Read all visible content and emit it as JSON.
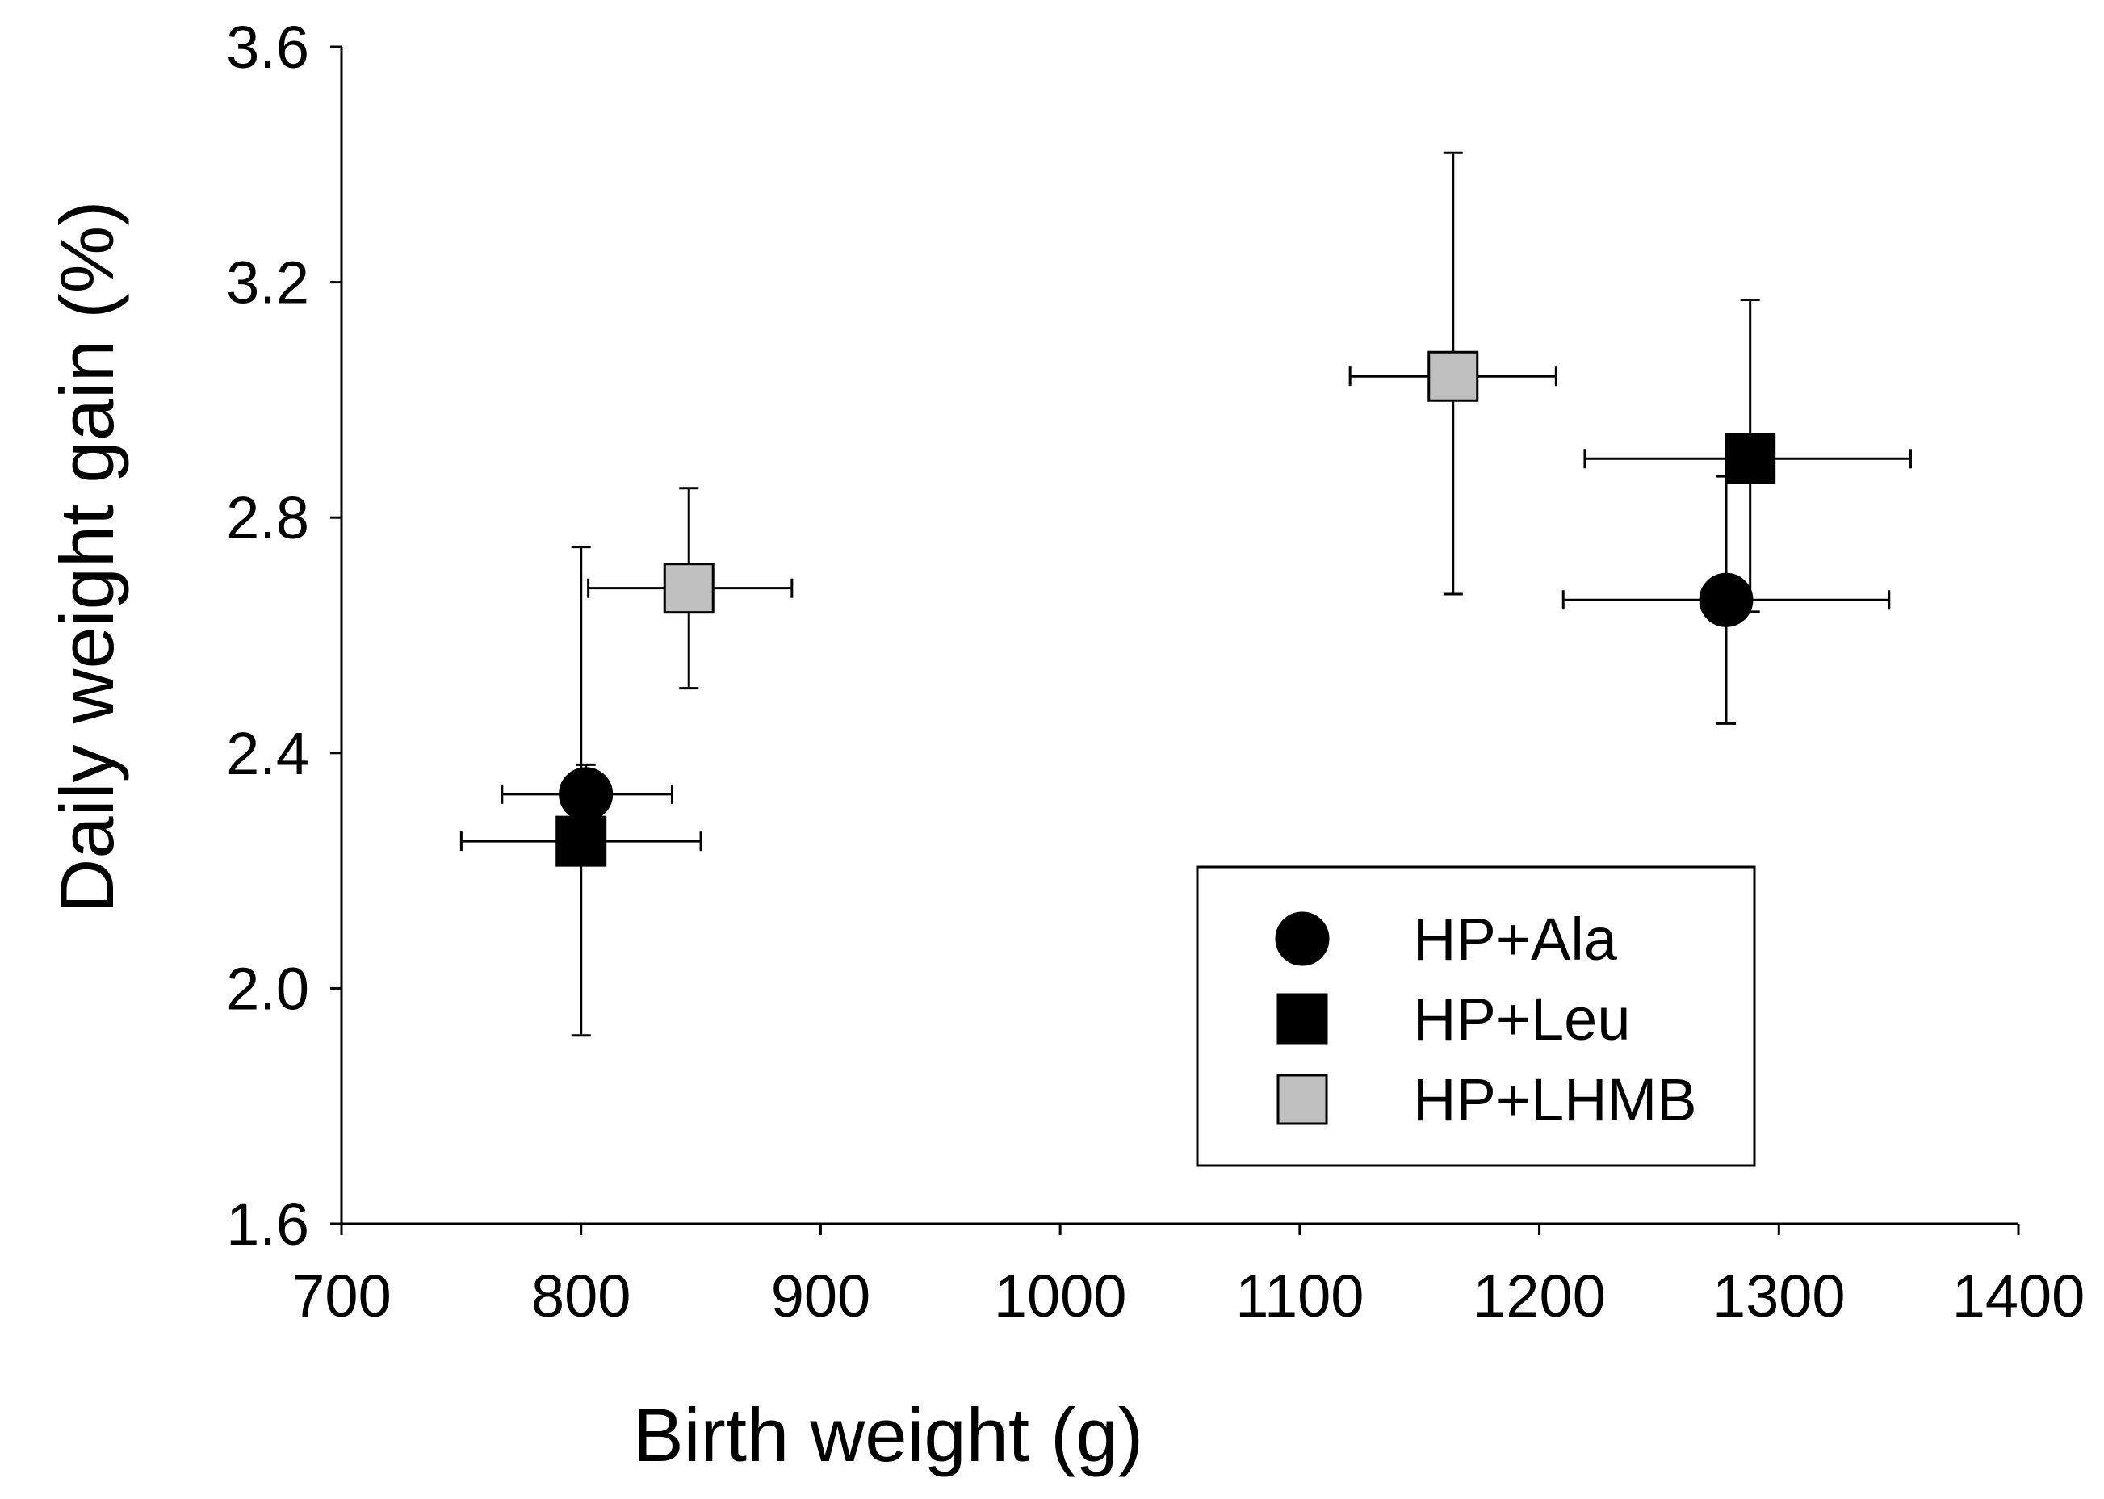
{
  "chart_data": {
    "type": "scatter",
    "title": "",
    "xlabel": "Birth weight (g)",
    "ylabel": "Daily weight gain (%)",
    "xlim": [
      700,
      1400
    ],
    "ylim": [
      1.6,
      3.6
    ],
    "x_ticks": [
      700,
      800,
      900,
      1000,
      1100,
      1200,
      1300,
      1400
    ],
    "y_ticks": [
      1.6,
      2.0,
      2.4,
      2.8,
      3.2,
      3.6
    ],
    "x_tick_labels": [
      "700",
      "800",
      "900",
      "1000",
      "1100",
      "1200",
      "1300",
      "1400"
    ],
    "y_tick_labels": [
      "1.6",
      "2.0",
      "2.4",
      "2.8",
      "3.2",
      "3.6"
    ],
    "grid": false,
    "legend_position": "bottom-right",
    "series": [
      {
        "name": "HP+Ala",
        "marker": "circle",
        "color": "#000000",
        "points": [
          {
            "x": 802,
            "y": 2.33,
            "x_err": [
              767,
              838
            ],
            "y_err": [
              2.28,
              2.38
            ]
          },
          {
            "x": 1278,
            "y": 2.66,
            "x_err": [
              1210,
              1346
            ],
            "y_err": [
              2.45,
              2.87
            ]
          }
        ]
      },
      {
        "name": "HP+Leu",
        "marker": "square",
        "color": "#000000",
        "points": [
          {
            "x": 800,
            "y": 2.25,
            "x_err": [
              750,
              850
            ],
            "y_err": [
              1.92,
              2.75
            ]
          },
          {
            "x": 1288,
            "y": 2.9,
            "x_err": [
              1219,
              1355
            ],
            "y_err": [
              2.64,
              3.17
            ]
          }
        ]
      },
      {
        "name": "HP+LHMB",
        "marker": "square",
        "color": "#c0c0c0",
        "points": [
          {
            "x": 845,
            "y": 2.68,
            "x_err": [
              803,
              888
            ],
            "y_err": [
              2.51,
              2.85
            ]
          },
          {
            "x": 1164,
            "y": 3.04,
            "x_err": [
              1121,
              1207
            ],
            "y_err": [
              2.67,
              3.42
            ]
          }
        ]
      }
    ]
  }
}
